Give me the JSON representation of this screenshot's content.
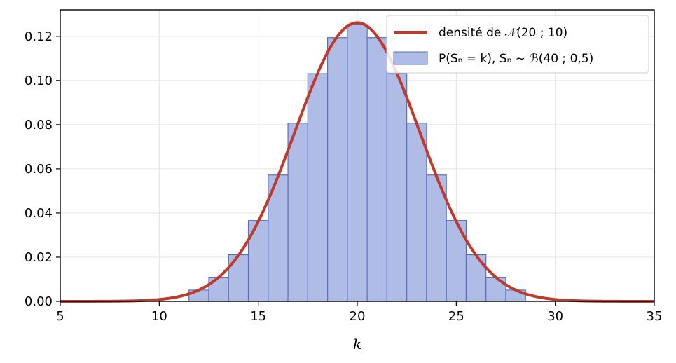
{
  "chart_data": {
    "type": "bar",
    "xlabel": "k",
    "ylabel": "",
    "xlim": [
      5,
      35
    ],
    "ylim": [
      0,
      0.132
    ],
    "grid": true,
    "legend_position": "top-right",
    "x_ticks": [
      5,
      10,
      15,
      20,
      25,
      30,
      35
    ],
    "x_tick_labels": [
      "5",
      "10",
      "15",
      "20",
      "25",
      "30",
      "35"
    ],
    "y_ticks": [
      0,
      0.02,
      0.04,
      0.06,
      0.08,
      0.1,
      0.12
    ],
    "y_tick_labels": [
      "0.00",
      "0.02",
      "0.04",
      "0.06",
      "0.08",
      "0.10",
      "0.12"
    ],
    "series": [
      {
        "name": "densité de 𝒩(20 ; 10)",
        "type": "line",
        "mean": 20,
        "variance": 10,
        "color": "#c0392b"
      },
      {
        "name": "P(Sₙ = k), Sₙ ~ ℬ(40 ; 0,5)",
        "type": "bar",
        "color": "#aebce6",
        "edge_color": "#5b6fc2",
        "x": [
          12,
          13,
          14,
          15,
          16,
          17,
          18,
          19,
          20,
          21,
          22,
          23,
          24,
          25,
          26,
          27,
          28
        ],
        "values": [
          0.0051,
          0.0109,
          0.0211,
          0.0366,
          0.0572,
          0.0807,
          0.1031,
          0.1194,
          0.1254,
          0.1194,
          0.1031,
          0.0807,
          0.0572,
          0.0366,
          0.0211,
          0.0109,
          0.0051
        ]
      }
    ]
  }
}
